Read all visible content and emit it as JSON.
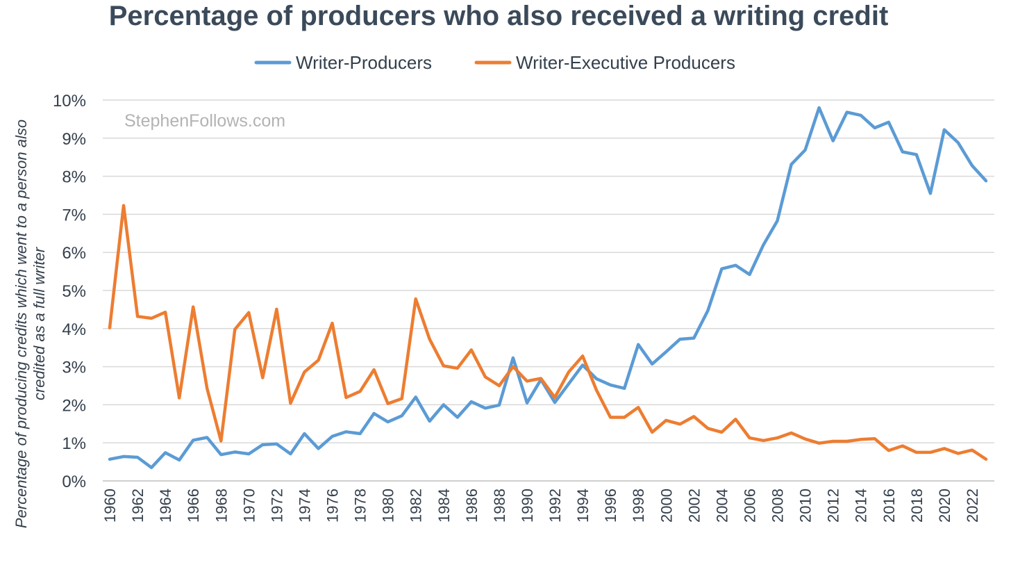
{
  "chart_data": {
    "type": "line",
    "title": "Percentage of producers who also received a writing credit",
    "xlabel": "",
    "ylabel": "Percentage of producing credits which went to a person also credited as a full writer",
    "ylabel_lines": [
      "Percentage of producing credits which went to a person also",
      "credited as a full writer"
    ],
    "watermark": "StephenFollows.com",
    "legend_position": "top-center",
    "grid": true,
    "ylim": [
      0,
      10
    ],
    "yticks": [
      0,
      1,
      2,
      3,
      4,
      5,
      6,
      7,
      8,
      9,
      10
    ],
    "ytick_labels": [
      "0%",
      "1%",
      "2%",
      "3%",
      "4%",
      "5%",
      "6%",
      "7%",
      "8%",
      "9%",
      "10%"
    ],
    "x": [
      1960,
      1961,
      1962,
      1963,
      1964,
      1965,
      1966,
      1967,
      1968,
      1969,
      1970,
      1971,
      1972,
      1973,
      1974,
      1975,
      1976,
      1977,
      1978,
      1979,
      1980,
      1981,
      1982,
      1983,
      1984,
      1985,
      1986,
      1987,
      1988,
      1989,
      1990,
      1991,
      1992,
      1993,
      1994,
      1995,
      1996,
      1997,
      1998,
      1999,
      2000,
      2001,
      2002,
      2003,
      2004,
      2005,
      2006,
      2007,
      2008,
      2009,
      2010,
      2011,
      2012,
      2013,
      2014,
      2015,
      2016,
      2017,
      2018,
      2019,
      2020,
      2021,
      2022,
      2023
    ],
    "xtick_labels": [
      "1960",
      "1962",
      "1964",
      "1966",
      "1968",
      "1970",
      "1972",
      "1974",
      "1976",
      "1978",
      "1980",
      "1982",
      "1984",
      "1986",
      "1988",
      "1990",
      "1992",
      "1994",
      "1996",
      "1998",
      "2000",
      "2002",
      "2004",
      "2006",
      "2008",
      "2010",
      "2012",
      "2014",
      "2016",
      "2018",
      "2020",
      "2022"
    ],
    "series": [
      {
        "name": "Writer-Producers",
        "color": "#5b9bd5",
        "values": [
          0.57,
          0.64,
          0.62,
          0.35,
          0.74,
          0.55,
          1.07,
          1.14,
          0.69,
          0.76,
          0.71,
          0.95,
          0.97,
          0.71,
          1.24,
          0.85,
          1.17,
          1.29,
          1.24,
          1.77,
          1.55,
          1.71,
          2.2,
          1.57,
          2.0,
          1.67,
          2.08,
          1.91,
          1.99,
          3.23,
          2.05,
          2.66,
          2.06,
          2.55,
          3.04,
          2.68,
          2.52,
          2.43,
          3.58,
          3.07,
          3.39,
          3.72,
          3.75,
          4.47,
          5.57,
          5.66,
          5.42,
          6.2,
          6.83,
          8.31,
          8.69,
          9.8,
          8.93,
          9.68,
          9.6,
          9.27,
          9.42,
          8.64,
          8.57,
          7.55,
          9.22,
          8.88,
          8.28,
          7.88
        ]
      },
      {
        "name": "Writer-Executive Producers",
        "color": "#ed7d31",
        "values": [
          4.02,
          7.23,
          4.32,
          4.27,
          4.43,
          2.18,
          4.57,
          2.43,
          1.05,
          3.98,
          4.42,
          2.71,
          4.51,
          2.04,
          2.86,
          3.17,
          4.14,
          2.19,
          2.35,
          2.92,
          2.03,
          2.16,
          4.78,
          3.72,
          3.02,
          2.96,
          3.44,
          2.73,
          2.5,
          3.0,
          2.62,
          2.69,
          2.19,
          2.86,
          3.28,
          2.38,
          1.67,
          1.67,
          1.93,
          1.28,
          1.59,
          1.49,
          1.69,
          1.38,
          1.28,
          1.62,
          1.13,
          1.06,
          1.13,
          1.26,
          1.1,
          0.99,
          1.04,
          1.04,
          1.09,
          1.11,
          0.8,
          0.92,
          0.75,
          0.75,
          0.85,
          0.72,
          0.81,
          0.57
        ]
      }
    ]
  }
}
